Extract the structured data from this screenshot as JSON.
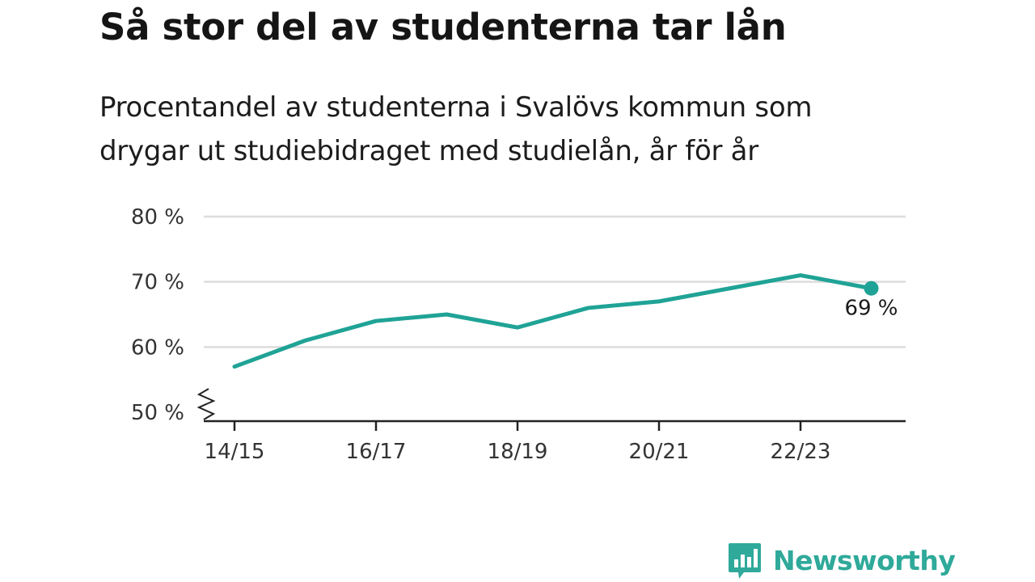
{
  "header": {
    "title": "Så stor del av studenterna tar lån",
    "subtitle": "Procentandel av studenterna i Svalövs kommun som drygar ut studiebidraget med studielån, år för år"
  },
  "chart_data": {
    "type": "line",
    "title": "Så stor del av studenterna tar lån",
    "subtitle": "Procentandel av studenterna i Svalövs kommun som drygar ut studiebidraget med studielån, år för år",
    "xlabel": "",
    "ylabel": "",
    "categories": [
      "14/15",
      "15/16",
      "16/17",
      "17/18",
      "18/19",
      "19/20",
      "20/21",
      "21/22",
      "22/23",
      "23/24"
    ],
    "x_tick_labels": [
      "14/15",
      "16/17",
      "18/19",
      "20/21",
      "22/23"
    ],
    "y_tick_labels": [
      "80 %",
      "70 %",
      "60 %",
      "50 %"
    ],
    "y_ticks": [
      80,
      70,
      60,
      50
    ],
    "ylim": [
      50,
      80
    ],
    "y_axis_break": true,
    "grid": true,
    "series": [
      {
        "values": [
          57,
          61,
          64,
          65,
          63,
          66,
          67,
          69,
          71,
          69
        ],
        "color": "#1fa396"
      }
    ],
    "end_label": "69 %"
  },
  "brand": {
    "name": "Newsworthy",
    "color": "#2fa99a",
    "icon": "bar-chart-speech-bubble-icon"
  }
}
